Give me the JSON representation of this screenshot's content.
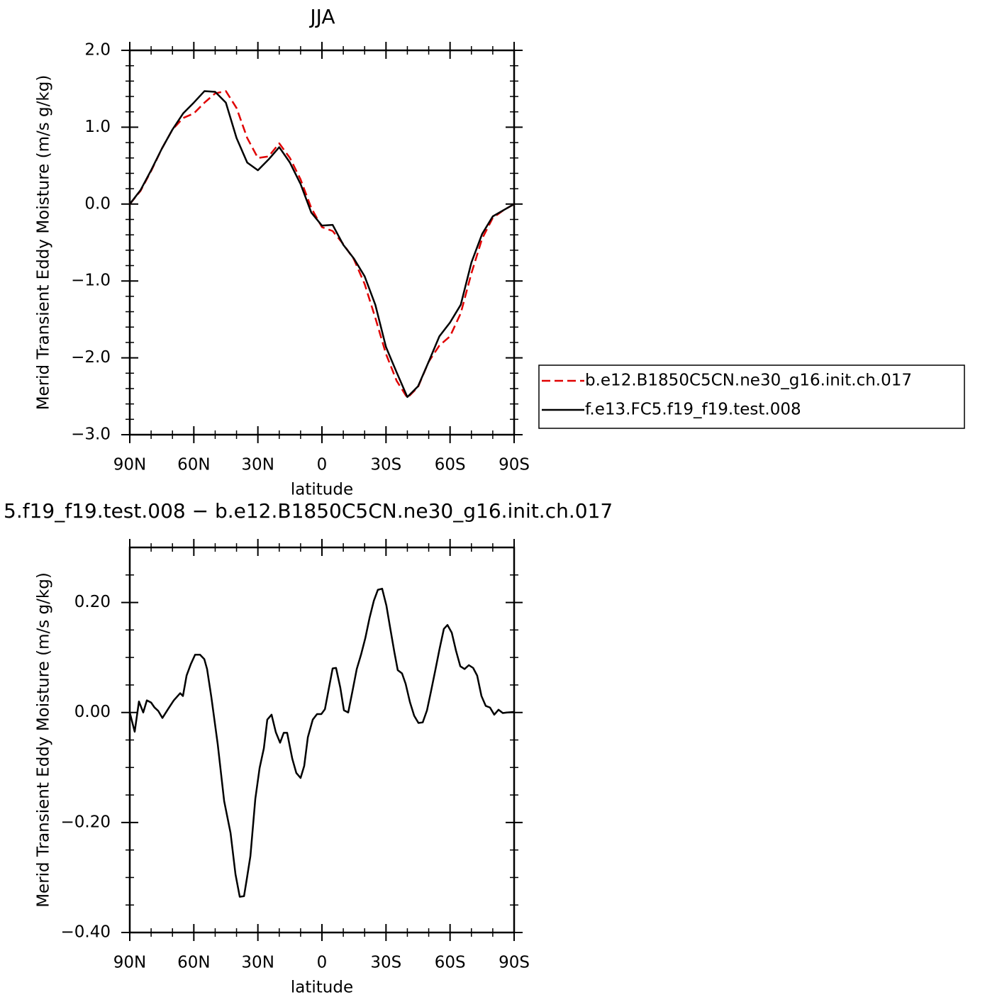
{
  "chart_data": [
    {
      "type": "line",
      "title": "JJA",
      "x_label": "latitude",
      "y_label": "Merid Transient Eddy Moisture (m/s g/kg)",
      "x": [
        90,
        85,
        80,
        75,
        70,
        65,
        60,
        55,
        50,
        45,
        40,
        35,
        30,
        25,
        20,
        15,
        10,
        5,
        0,
        -5,
        -10,
        -15,
        -20,
        -25,
        -30,
        -35,
        -40,
        -45,
        -50,
        -55,
        -60,
        -65,
        -70,
        -75,
        -80,
        -85,
        -90
      ],
      "series": [
        {
          "name": "b.e12.B1850C5CN.ne30_g16.init.ch.017",
          "color": "#e00000",
          "dash": true,
          "values": [
            0,
            0.17,
            0.43,
            0.72,
            0.97,
            1.12,
            1.18,
            1.32,
            1.44,
            1.47,
            1.25,
            0.86,
            0.6,
            0.62,
            0.79,
            0.6,
            0.32,
            -0.05,
            -0.3,
            -0.35,
            -0.52,
            -0.72,
            -1.04,
            -1.48,
            -1.95,
            -2.3,
            -2.52,
            -2.38,
            -2.05,
            -1.84,
            -1.72,
            -1.42,
            -0.9,
            -0.45,
            -0.18,
            -0.08,
            0
          ]
        },
        {
          "name": "f.e13.FC5.f19_f19.test.008",
          "color": "#000000",
          "dash": false,
          "values": [
            0,
            0.18,
            0.44,
            0.72,
            0.97,
            1.18,
            1.32,
            1.47,
            1.46,
            1.32,
            0.86,
            0.54,
            0.44,
            0.58,
            0.74,
            0.54,
            0.26,
            -0.11,
            -0.28,
            -0.27,
            -0.53,
            -0.71,
            -0.94,
            -1.31,
            -1.86,
            -2.19,
            -2.51,
            -2.37,
            -2.05,
            -1.72,
            -1.54,
            -1.31,
            -0.76,
            -0.39,
            -0.16,
            -0.08,
            0
          ]
        }
      ],
      "legend": "outside-right",
      "xlim": [
        90,
        -90
      ],
      "xticks": [
        {
          "value": 90,
          "label": "90N"
        },
        {
          "value": 60,
          "label": "60N"
        },
        {
          "value": 30,
          "label": "30N"
        },
        0,
        {
          "value": -30,
          "label": "30S"
        },
        {
          "value": -60,
          "label": "60S"
        },
        {
          "value": -90,
          "label": "90S"
        }
      ],
      "minor_xticks": [
        80,
        70,
        50,
        40,
        20,
        10,
        -10,
        -20,
        -40,
        -50,
        -70,
        -80
      ],
      "ylim": [
        -3.0,
        2.0
      ],
      "yticks": [
        {
          "value": 2.0,
          "label": "2.0"
        },
        {
          "value": 1.0,
          "label": "1.0"
        },
        {
          "value": 0.0,
          "label": "0.0"
        },
        {
          "value": -1.0,
          "label": "−1.0"
        },
        {
          "value": -2.0,
          "label": "−2.0"
        },
        {
          "value": -3.0,
          "label": "−3.0"
        }
      ],
      "minor_yticks": [
        1.8,
        1.6,
        1.4,
        1.2,
        0.8,
        0.6,
        0.4,
        0.2,
        -0.2,
        -0.4,
        -0.6,
        -0.8,
        -1.2,
        -1.4,
        -1.6,
        -1.8,
        -2.2,
        -2.4,
        -2.6,
        -2.8
      ]
    },
    {
      "type": "line",
      "title": "5.f19_f19.test.008 − b.e12.B1850C5CN.ne30_g16.init.ch.017",
      "x_label": "latitude",
      "y_label": "Merid Transient Eddy Moisture (m/s g/kg)",
      "x": [
        90,
        87.7,
        85.7,
        83.7,
        82,
        80,
        78.4,
        76.7,
        74.7,
        72.1,
        69.4,
        66.4,
        65.1,
        63.4,
        61.4,
        59.4,
        57.1,
        55.1,
        53.8,
        51.8,
        48.8,
        45.8,
        42.8,
        40.5,
        38.5,
        36.5,
        35.2,
        33.5,
        31.2,
        29.2,
        27.2,
        25.6,
        23.6,
        21.6,
        19.6,
        17.9,
        16.3,
        13.9,
        12,
        10,
        8.3,
        6.6,
        4.3,
        2.3,
        0.3,
        -1.4,
        -3,
        -5,
        -6.6,
        -8.6,
        -10.3,
        -12.3,
        -14.3,
        -16.3,
        -18.3,
        -20.3,
        -22.3,
        -24.3,
        -26.2,
        -28.2,
        -30.2,
        -31.9,
        -33.9,
        -35.5,
        -37.5,
        -39.2,
        -41.2,
        -43.2,
        -45.2,
        -47.2,
        -49.2,
        -51.1,
        -53.1,
        -55.1,
        -57.1,
        -58.8,
        -60.8,
        -62.8,
        -64.8,
        -66.8,
        -68.8,
        -70.8,
        -72.7,
        -74.7,
        -76.7,
        -78.7,
        -80.7,
        -82.7,
        -84.7,
        -86.7,
        -90
      ],
      "series": [
        {
          "name": "difference",
          "color": "#000000",
          "dash": false,
          "values": [
            0,
            -0.035,
            0.02,
            0,
            0.022,
            0.018,
            0.009,
            0.003,
            -0.01,
            0.006,
            0.022,
            0.035,
            0.03,
            0.067,
            0.088,
            0.105,
            0.105,
            0.097,
            0.079,
            0.028,
            -0.058,
            -0.161,
            -0.219,
            -0.294,
            -0.335,
            -0.334,
            -0.303,
            -0.261,
            -0.157,
            -0.101,
            -0.065,
            -0.013,
            -0.004,
            -0.036,
            -0.055,
            -0.037,
            -0.037,
            -0.084,
            -0.11,
            -0.119,
            -0.097,
            -0.045,
            -0.013,
            -0.003,
            -0.003,
            0.006,
            0.039,
            0.08,
            0.081,
            0.045,
            0.004,
            0,
            0.039,
            0.079,
            0.105,
            0.135,
            0.172,
            0.203,
            0.223,
            0.225,
            0.194,
            0.155,
            0.11,
            0.077,
            0.071,
            0.052,
            0.019,
            -0.006,
            -0.019,
            -0.018,
            0.004,
            0.039,
            0.077,
            0.116,
            0.152,
            0.159,
            0.145,
            0.112,
            0.084,
            0.079,
            0.086,
            0.081,
            0.067,
            0.03,
            0.012,
            0.009,
            -0.004,
            0.005,
            -0.001,
            0,
            0.001
          ]
        }
      ],
      "xlim": [
        90,
        -90
      ],
      "xticks": [
        {
          "value": 90,
          "label": "90N"
        },
        {
          "value": 60,
          "label": "60N"
        },
        {
          "value": 30,
          "label": "30N"
        },
        0,
        {
          "value": -30,
          "label": "30S"
        },
        {
          "value": -60,
          "label": "60S"
        },
        {
          "value": -90,
          "label": "90S"
        }
      ],
      "minor_xticks": [
        80,
        70,
        50,
        40,
        20,
        10,
        -10,
        -20,
        -40,
        -50,
        -70,
        -80
      ],
      "ylim": [
        -0.4,
        0.3
      ],
      "yticks": [
        {
          "value": 0.2,
          "label": "0.20"
        },
        {
          "value": 0.0,
          "label": "0.00"
        },
        {
          "value": -0.2,
          "label": "−0.20"
        },
        {
          "value": -0.4,
          "label": "−0.40"
        }
      ],
      "minor_yticks": [
        0.25,
        0.15,
        0.1,
        0.05,
        -0.05,
        -0.1,
        -0.15,
        -0.25,
        -0.3,
        -0.35
      ]
    }
  ]
}
